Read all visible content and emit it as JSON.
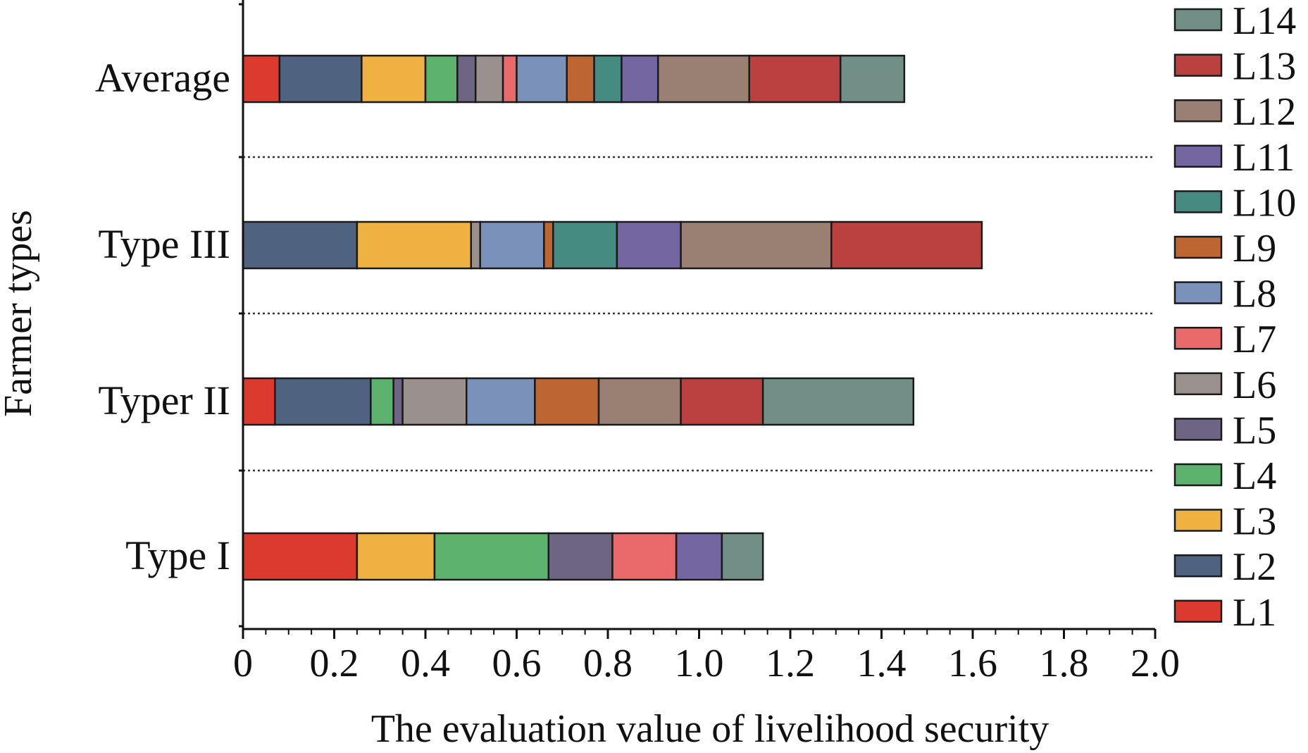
{
  "chart_data": {
    "type": "bar",
    "orientation": "horizontal",
    "stacked": true,
    "xlabel": "The evaluation value of livelihood security",
    "ylabel": "Farmer types",
    "xlim": [
      0,
      2.0
    ],
    "xticks": [
      "0",
      "0.2",
      "0.4",
      "0.6",
      "0.8",
      "1.0",
      "1.2",
      "1.4",
      "1.6",
      "1.8",
      "2.0"
    ],
    "categories": [
      "Type I",
      "Typer II",
      "Type III",
      "Average"
    ],
    "legend_position": "right",
    "legend_order": "L14 to L1, top to bottom",
    "series": [
      {
        "name": "L1",
        "color": "#DC3A2E",
        "values": [
          0.25,
          0.07,
          0.0,
          0.08
        ]
      },
      {
        "name": "L2",
        "color": "#4F627F",
        "values": [
          0.0,
          0.21,
          0.25,
          0.18
        ]
      },
      {
        "name": "L3",
        "color": "#EFB141",
        "values": [
          0.17,
          0.0,
          0.25,
          0.14
        ]
      },
      {
        "name": "L4",
        "color": "#5DB36D",
        "values": [
          0.25,
          0.05,
          0.0,
          0.07
        ]
      },
      {
        "name": "L5",
        "color": "#6E6584",
        "values": [
          0.14,
          0.02,
          0.0,
          0.04
        ]
      },
      {
        "name": "L6",
        "color": "#9A918E",
        "values": [
          0.0,
          0.14,
          0.02,
          0.06
        ]
      },
      {
        "name": "L7",
        "color": "#EA6A6C",
        "values": [
          0.14,
          0.0,
          0.0,
          0.03
        ]
      },
      {
        "name": "L8",
        "color": "#7A91B9",
        "values": [
          0.0,
          0.15,
          0.14,
          0.11
        ]
      },
      {
        "name": "L9",
        "color": "#BE6631",
        "values": [
          0.0,
          0.14,
          0.02,
          0.06
        ]
      },
      {
        "name": "L10",
        "color": "#468B81",
        "values": [
          0.0,
          0.0,
          0.14,
          0.06
        ]
      },
      {
        "name": "L11",
        "color": "#7466A0",
        "values": [
          0.1,
          0.0,
          0.14,
          0.08
        ]
      },
      {
        "name": "L12",
        "color": "#9A7F73",
        "values": [
          0.0,
          0.18,
          0.33,
          0.2
        ]
      },
      {
        "name": "L13",
        "color": "#BB4141",
        "values": [
          0.0,
          0.18,
          0.33,
          0.2
        ]
      },
      {
        "name": "L14",
        "color": "#718F86",
        "values": [
          0.09,
          0.33,
          0.0,
          0.14
        ]
      }
    ],
    "totals": [
      1.15,
      1.49,
      1.64,
      1.48
    ]
  }
}
